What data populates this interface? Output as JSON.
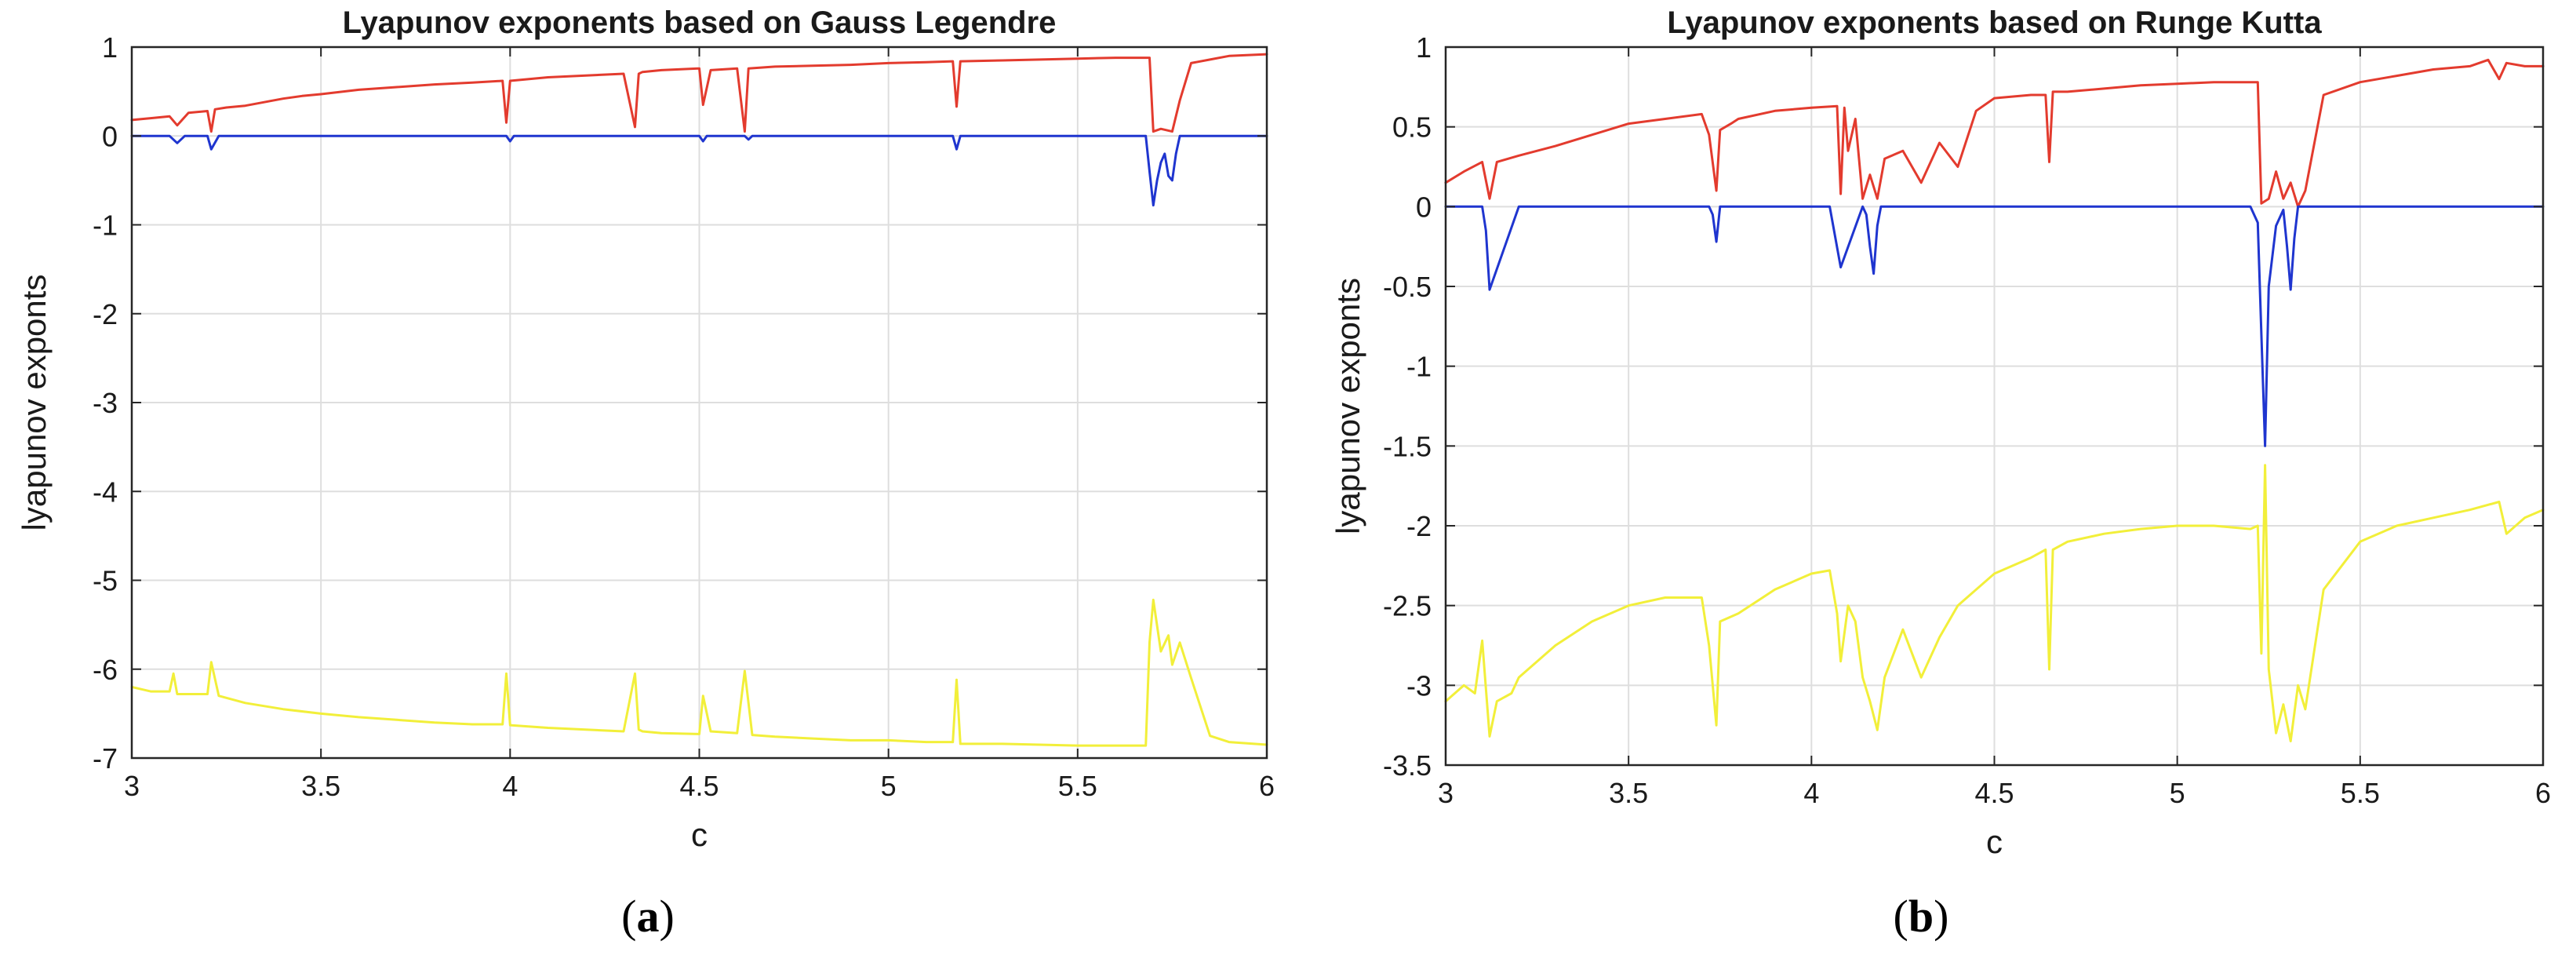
{
  "chart_data": [
    {
      "type": "line",
      "title": "Lyapunov exponents based on Gauss Legendre",
      "xlabel": "c",
      "ylabel": "lyapunov exponts",
      "xlim": [
        3,
        6
      ],
      "ylim": [
        -7,
        1
      ],
      "xticks": [
        3,
        3.5,
        4,
        4.5,
        5,
        5.5,
        6
      ],
      "yticks": [
        1,
        0,
        -1,
        -2,
        -3,
        -4,
        -5,
        -6,
        -7
      ],
      "grid": true,
      "panel_label": "a",
      "series": [
        {
          "color": "#e33b2e",
          "x": [
            3,
            3.05,
            3.1,
            3.12,
            3.15,
            3.2,
            3.21,
            3.22,
            3.25,
            3.3,
            3.35,
            3.4,
            3.45,
            3.5,
            3.6,
            3.7,
            3.8,
            3.9,
            3.98,
            3.99,
            4.0,
            4.1,
            4.2,
            4.3,
            4.33,
            4.34,
            4.35,
            4.4,
            4.5,
            4.51,
            4.53,
            4.6,
            4.62,
            4.63,
            4.7,
            4.8,
            4.9,
            5.0,
            5.1,
            5.17,
            5.18,
            5.19,
            5.3,
            5.4,
            5.5,
            5.6,
            5.69,
            5.7,
            5.72,
            5.75,
            5.77,
            5.8,
            5.85,
            5.9,
            6.0
          ],
          "y": [
            0.18,
            0.2,
            0.22,
            0.12,
            0.26,
            0.28,
            0.05,
            0.3,
            0.32,
            0.34,
            0.38,
            0.42,
            0.45,
            0.47,
            0.52,
            0.55,
            0.58,
            0.6,
            0.62,
            0.15,
            0.62,
            0.66,
            0.68,
            0.7,
            0.1,
            0.7,
            0.72,
            0.74,
            0.76,
            0.35,
            0.74,
            0.76,
            0.05,
            0.76,
            0.78,
            0.79,
            0.8,
            0.82,
            0.83,
            0.84,
            0.33,
            0.84,
            0.85,
            0.86,
            0.87,
            0.88,
            0.88,
            0.05,
            0.08,
            0.05,
            0.4,
            0.82,
            0.86,
            0.9,
            0.92
          ]
        },
        {
          "color": "#1f35cf",
          "x": [
            3,
            3.1,
            3.12,
            3.14,
            3.2,
            3.21,
            3.23,
            3.5,
            3.99,
            4.0,
            4.01,
            4.5,
            4.51,
            4.52,
            4.62,
            4.63,
            4.64,
            5.17,
            5.18,
            5.19,
            5.68,
            5.69,
            5.7,
            5.71,
            5.72,
            5.73,
            5.74,
            5.75,
            5.76,
            5.77,
            5.8,
            6.0
          ],
          "y": [
            0,
            0,
            -0.08,
            0,
            0,
            -0.15,
            0,
            0,
            0,
            -0.06,
            0,
            0,
            -0.06,
            0,
            0,
            -0.04,
            0,
            0,
            -0.15,
            0,
            0,
            -0.4,
            -0.78,
            -0.5,
            -0.3,
            -0.2,
            -0.45,
            -0.5,
            -0.2,
            0,
            0,
            0
          ]
        },
        {
          "color": "#f2ef3a",
          "x": [
            3,
            3.05,
            3.1,
            3.11,
            3.12,
            3.2,
            3.21,
            3.23,
            3.3,
            3.4,
            3.5,
            3.6,
            3.7,
            3.8,
            3.9,
            3.98,
            3.99,
            4.0,
            4.1,
            4.2,
            4.3,
            4.33,
            4.34,
            4.35,
            4.4,
            4.5,
            4.51,
            4.53,
            4.6,
            4.62,
            4.64,
            4.7,
            4.8,
            4.9,
            5.0,
            5.1,
            5.17,
            5.18,
            5.19,
            5.3,
            5.4,
            5.5,
            5.6,
            5.68,
            5.69,
            5.7,
            5.72,
            5.74,
            5.75,
            5.77,
            5.8,
            5.85,
            5.9,
            6.0
          ],
          "y": [
            -6.2,
            -6.25,
            -6.25,
            -6.05,
            -6.28,
            -6.28,
            -5.92,
            -6.3,
            -6.38,
            -6.45,
            -6.5,
            -6.54,
            -6.57,
            -6.6,
            -6.62,
            -6.62,
            -6.05,
            -6.63,
            -6.66,
            -6.68,
            -6.7,
            -6.05,
            -6.68,
            -6.7,
            -6.72,
            -6.73,
            -6.3,
            -6.7,
            -6.72,
            -6.02,
            -6.74,
            -6.76,
            -6.78,
            -6.8,
            -6.8,
            -6.82,
            -6.82,
            -6.12,
            -6.84,
            -6.84,
            -6.85,
            -6.86,
            -6.86,
            -6.86,
            -5.7,
            -5.22,
            -5.8,
            -5.62,
            -5.95,
            -5.7,
            -6.1,
            -6.75,
            -6.82,
            -6.85
          ]
        }
      ]
    },
    {
      "type": "line",
      "title": "Lyapunov exponents based on Runge Kutta",
      "xlabel": "c",
      "ylabel": "lyapunov exponts",
      "xlim": [
        3,
        6
      ],
      "ylim": [
        -3.5,
        1
      ],
      "xticks": [
        3,
        3.5,
        4,
        4.5,
        5,
        5.5,
        6
      ],
      "yticks": [
        1,
        0.5,
        0,
        -0.5,
        -1,
        -1.5,
        -2,
        -2.5,
        -3,
        -3.5
      ],
      "grid": true,
      "panel_label": "b",
      "series": [
        {
          "color": "#e33b2e",
          "x": [
            3,
            3.05,
            3.1,
            3.12,
            3.14,
            3.2,
            3.3,
            3.4,
            3.5,
            3.6,
            3.7,
            3.72,
            3.74,
            3.75,
            3.78,
            3.8,
            3.9,
            4.0,
            4.07,
            4.08,
            4.09,
            4.1,
            4.12,
            4.14,
            4.16,
            4.18,
            4.2,
            4.25,
            4.3,
            4.35,
            4.4,
            4.45,
            4.5,
            4.6,
            4.64,
            4.65,
            4.66,
            4.7,
            4.8,
            4.9,
            5.0,
            5.1,
            5.2,
            5.22,
            5.23,
            5.25,
            5.27,
            5.29,
            5.31,
            5.33,
            5.35,
            5.4,
            5.5,
            5.6,
            5.7,
            5.8,
            5.85,
            5.88,
            5.9,
            5.95,
            6.0
          ],
          "y": [
            0.15,
            0.22,
            0.28,
            0.05,
            0.28,
            0.32,
            0.38,
            0.45,
            0.52,
            0.55,
            0.58,
            0.45,
            0.1,
            0.48,
            0.52,
            0.55,
            0.6,
            0.62,
            0.63,
            0.08,
            0.62,
            0.35,
            0.55,
            0.05,
            0.2,
            0.05,
            0.3,
            0.35,
            0.15,
            0.4,
            0.25,
            0.6,
            0.68,
            0.7,
            0.7,
            0.28,
            0.72,
            0.72,
            0.74,
            0.76,
            0.77,
            0.78,
            0.78,
            0.78,
            0.02,
            0.05,
            0.22,
            0.05,
            0.15,
            0.0,
            0.1,
            0.7,
            0.78,
            0.82,
            0.86,
            0.88,
            0.92,
            0.8,
            0.9,
            0.88,
            0.88
          ]
        },
        {
          "color": "#1f35cf",
          "x": [
            3,
            3.1,
            3.11,
            3.12,
            3.2,
            3.5,
            3.72,
            3.73,
            3.74,
            3.75,
            3.8,
            4.05,
            4.08,
            4.14,
            4.15,
            4.16,
            4.17,
            4.18,
            4.19,
            4.2,
            5.2,
            5.22,
            5.23,
            5.24,
            5.25,
            5.27,
            5.29,
            5.3,
            5.31,
            5.32,
            5.33,
            5.4,
            6.0
          ],
          "y": [
            0,
            0,
            -0.15,
            -0.52,
            0,
            0,
            0,
            -0.05,
            -0.22,
            0,
            0,
            0,
            -0.38,
            0,
            -0.05,
            -0.25,
            -0.42,
            -0.12,
            0,
            0,
            0,
            -0.1,
            -0.8,
            -1.5,
            -0.5,
            -0.12,
            -0.02,
            -0.25,
            -0.52,
            -0.2,
            0,
            0,
            0
          ]
        },
        {
          "color": "#f2ef3a",
          "x": [
            3,
            3.05,
            3.08,
            3.1,
            3.12,
            3.14,
            3.18,
            3.2,
            3.3,
            3.4,
            3.5,
            3.6,
            3.7,
            3.72,
            3.74,
            3.75,
            3.8,
            3.9,
            4.0,
            4.05,
            4.07,
            4.08,
            4.1,
            4.12,
            4.14,
            4.16,
            4.18,
            4.2,
            4.25,
            4.3,
            4.35,
            4.4,
            4.5,
            4.6,
            4.64,
            4.65,
            4.66,
            4.7,
            4.8,
            4.9,
            5.0,
            5.1,
            5.2,
            5.22,
            5.23,
            5.24,
            5.25,
            5.27,
            5.29,
            5.31,
            5.33,
            5.35,
            5.4,
            5.5,
            5.6,
            5.7,
            5.8,
            5.88,
            5.9,
            5.95,
            6.0
          ],
          "y": [
            -3.1,
            -3.0,
            -3.05,
            -2.72,
            -3.32,
            -3.1,
            -3.05,
            -2.95,
            -2.75,
            -2.6,
            -2.5,
            -2.45,
            -2.45,
            -2.75,
            -3.25,
            -2.6,
            -2.55,
            -2.4,
            -2.3,
            -2.28,
            -2.55,
            -2.85,
            -2.5,
            -2.6,
            -2.95,
            -3.1,
            -3.28,
            -2.95,
            -2.65,
            -2.95,
            -2.7,
            -2.5,
            -2.3,
            -2.2,
            -2.15,
            -2.9,
            -2.15,
            -2.1,
            -2.05,
            -2.02,
            -2.0,
            -2.0,
            -2.02,
            -2.0,
            -2.8,
            -1.62,
            -2.9,
            -3.3,
            -3.12,
            -3.35,
            -3.0,
            -3.15,
            -2.4,
            -2.1,
            -2.0,
            -1.95,
            -1.9,
            -1.85,
            -2.05,
            -1.95,
            -1.9
          ]
        }
      ]
    }
  ]
}
